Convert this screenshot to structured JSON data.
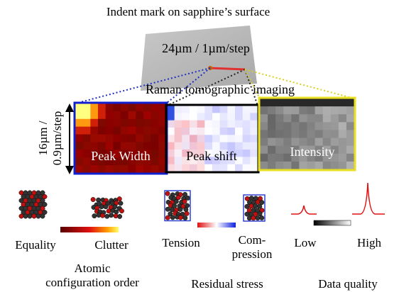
{
  "header": {
    "title": "Indent mark on sapphire’s surface"
  },
  "sample": {
    "scan_label": "24µm / 1µm/step"
  },
  "imaging": {
    "title": "Raman tomographic imaging",
    "depth_label": [
      "16µm /",
      "0.9µm/step"
    ],
    "panels": [
      "Peak Width",
      "Peak shift",
      "Intensity"
    ]
  },
  "legends": [
    {
      "low": "Equality",
      "high": "Clutter",
      "title": [
        "Atomic",
        "configuration order"
      ]
    },
    {
      "low": "Tension",
      "high": [
        "Com-",
        "pression"
      ],
      "title": "Residual stress"
    },
    {
      "low": "Low",
      "high": "High",
      "title": "Data quality"
    }
  ]
}
